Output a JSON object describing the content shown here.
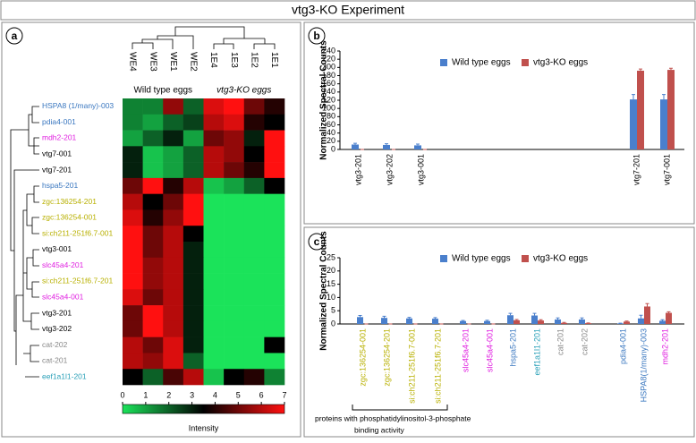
{
  "title": "vtg3-KO Experiment",
  "chart_data": [
    {
      "type": "heatmap",
      "panel": "a",
      "columns": [
        "WE4",
        "WE3",
        "WE1",
        "WE2",
        "1E4",
        "1E3",
        "1E2",
        "1E1"
      ],
      "column_groups": [
        "Wild type eggs",
        "vtg3-KO eggs"
      ],
      "rows": [
        "HSPA8 (1/many)-003",
        "pdia4-001",
        "mdh2-201",
        "vtg7-001",
        "vtg7-201",
        "hspa5-201",
        "zgc:136254-201",
        "zgc:136254-001",
        "si:ch211-251f6.7-001",
        "vtg3-001",
        "slc45a4-201",
        "si:ch211-251f6.7-201",
        "slc45a4-001",
        "vtg3-201",
        "vtg3-202",
        "cat-202",
        "cat-201",
        "eef1a1l1-201"
      ],
      "row_colors": [
        "#3b78c0",
        "#3b78c0",
        "#e020e0",
        "#000000",
        "#000000",
        "#3b78c0",
        "#b8b000",
        "#b8b000",
        "#b8b000",
        "#000000",
        "#e020e0",
        "#b8b000",
        "#e020e0",
        "#000000",
        "#000000",
        "#888888",
        "#888888",
        "#2aa0b8"
      ],
      "values": [
        [
          1.5,
          1.5,
          5.5,
          2,
          6.5,
          7,
          5,
          4
        ],
        [
          1.5,
          1,
          2,
          2.5,
          6,
          6.5,
          4,
          3.5
        ],
        [
          1,
          2,
          3,
          1,
          5,
          5.5,
          3,
          7
        ],
        [
          3,
          0.5,
          1,
          2,
          6,
          5.5,
          3.5,
          7
        ],
        [
          3,
          0.5,
          1,
          2,
          6,
          5,
          4,
          7
        ],
        [
          5,
          7,
          4,
          6,
          0.5,
          1,
          2,
          3.5
        ],
        [
          6,
          3.5,
          5,
          7,
          0,
          0,
          0,
          0
        ],
        [
          6.5,
          4,
          5.5,
          7,
          0,
          0,
          0,
          0
        ],
        [
          7,
          5,
          6,
          3.5,
          0,
          0,
          0,
          0
        ],
        [
          7,
          5,
          6,
          3,
          0,
          0,
          0,
          0
        ],
        [
          7,
          5.5,
          6,
          3,
          0,
          0,
          0,
          0
        ],
        [
          7,
          5.5,
          6,
          3,
          0,
          0,
          0,
          0
        ],
        [
          6.5,
          5,
          6,
          3,
          0,
          0,
          0,
          0
        ],
        [
          5,
          7,
          6,
          3,
          0,
          0,
          0,
          0
        ],
        [
          5,
          7,
          6,
          3,
          0,
          0,
          0,
          0
        ],
        [
          6,
          5,
          6.5,
          3,
          0,
          0,
          0,
          3.5
        ],
        [
          6,
          5.5,
          6.5,
          2,
          0,
          0,
          0,
          0
        ],
        [
          3.5,
          2,
          4.5,
          6,
          0.5,
          3.5,
          4,
          1.5
        ]
      ],
      "zlim": [
        0,
        7
      ],
      "zticks": [
        0,
        1,
        2,
        3,
        4,
        5,
        6,
        7
      ],
      "colors": [
        "#1be35a",
        "#000000",
        "#ff1010"
      ],
      "colorbar_label": "Intensity"
    },
    {
      "type": "bar",
      "panel": "b",
      "ylabel": "Normalized Spectral Counts",
      "categories": [
        "vtg3-201",
        "vtg3-202",
        "vtg3-001",
        "vtg7-201",
        "vtg7-001"
      ],
      "series": [
        {
          "name": "Wild type eggs",
          "color": "#4a7fcc",
          "values": [
            12,
            11,
            10,
            122,
            122
          ],
          "errors": [
            3,
            3,
            3,
            12,
            12
          ]
        },
        {
          "name": "vtg3-KO eggs",
          "color": "#c0504d",
          "values": [
            0,
            0,
            0,
            192,
            194
          ],
          "errors": [
            0,
            0,
            0,
            4,
            4
          ]
        }
      ],
      "ylim": [
        0,
        240
      ],
      "yticks": [
        0,
        20,
        40,
        60,
        80,
        100,
        120,
        140,
        160,
        180,
        200,
        220,
        240
      ],
      "legend": "top"
    },
    {
      "type": "bar",
      "panel": "c",
      "ylabel": "Normalized Spectral Counts",
      "categories": [
        "zgc:136254-001",
        "zgc:136254-201",
        "si:ch211-251f6.7-001",
        "si:ch211-251f6.7-201",
        "slc45a4-201",
        "slc45a4-001",
        "hspa5-201",
        "eef1a1l1-201",
        "cat-201",
        "cat-202",
        "pdia4-001",
        "HSPA8(1/many)-003",
        "mdh2-201"
      ],
      "category_colors": [
        "#b8b000",
        "#b8b000",
        "#b8b000",
        "#b8b000",
        "#e020e0",
        "#e020e0",
        "#3b78c0",
        "#2aa0b8",
        "#888888",
        "#888888",
        "#3b78c0",
        "#3b78c0",
        "#e020e0"
      ],
      "series": [
        {
          "name": "Wild type eggs",
          "color": "#4a7fcc",
          "values": [
            2.6,
            2.3,
            2.1,
            2.0,
            1.1,
            1.1,
            3.3,
            3.2,
            1.7,
            1.7,
            0.2,
            2.1,
            1.2
          ],
          "errors": [
            0.6,
            0.6,
            0.4,
            0.4,
            0.2,
            0.3,
            0.7,
            0.8,
            0.6,
            0.6,
            0.1,
            1.2,
            0.4
          ]
        },
        {
          "name": "vtg3-KO eggs",
          "color": "#c0504d",
          "values": [
            0,
            0,
            0,
            0,
            0,
            0,
            1.4,
            1.3,
            0.4,
            0.3,
            0.9,
            6.6,
            4.2
          ],
          "errors": [
            0,
            0,
            0,
            0,
            0,
            0,
            0.3,
            0.3,
            0.2,
            0.1,
            0.2,
            1.1,
            0.4
          ]
        }
      ],
      "ylim": [
        0,
        25
      ],
      "yticks": [
        0,
        5,
        10,
        15,
        20,
        25
      ],
      "legend": "top",
      "annotation": [
        "proteins with  phosphatidylinositol-3-phosphate",
        "binding activity"
      ]
    }
  ]
}
